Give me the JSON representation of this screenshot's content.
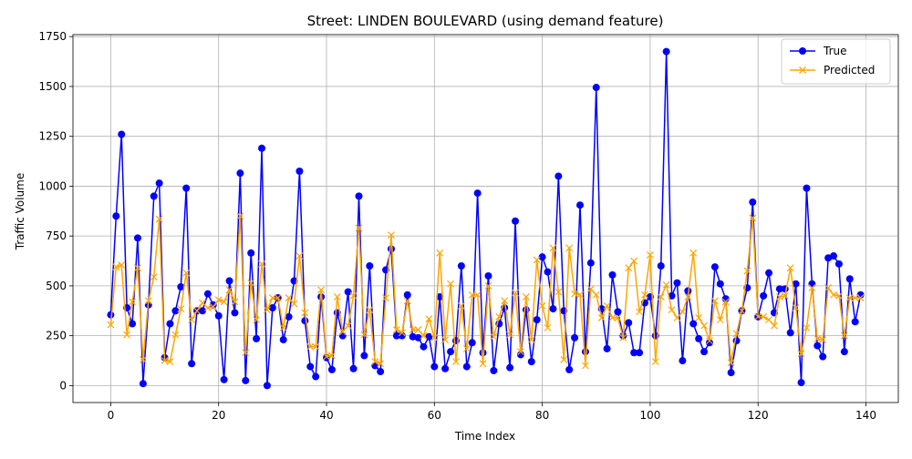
{
  "chart_data": {
    "type": "line",
    "title": "Street: LINDEN BOULEVARD (using demand feature)",
    "xlabel": "Time Index",
    "ylabel": "Traffic Volume",
    "xlim": [
      -7,
      146
    ],
    "ylim": [
      -85,
      1760
    ],
    "xticks": [
      0,
      20,
      40,
      60,
      80,
      100,
      120,
      140
    ],
    "yticks": [
      0,
      250,
      500,
      750,
      1000,
      1250,
      1500,
      1750
    ],
    "grid": true,
    "legend_position": "top-right",
    "series": [
      {
        "name": "True",
        "color": "#0000ff",
        "marker": "circle",
        "values": [
          355,
          850,
          1260,
          390,
          310,
          740,
          10,
          405,
          950,
          1015,
          140,
          310,
          375,
          495,
          990,
          110,
          375,
          375,
          460,
          405,
          350,
          30,
          525,
          365,
          1065,
          25,
          665,
          235,
          1190,
          0,
          390,
          440,
          230,
          345,
          525,
          1075,
          325,
          95,
          45,
          445,
          140,
          80,
          365,
          250,
          470,
          85,
          950,
          150,
          600,
          100,
          70,
          580,
          685,
          250,
          250,
          455,
          245,
          240,
          195,
          245,
          95,
          445,
          85,
          170,
          225,
          600,
          95,
          215,
          965,
          165,
          550,
          75,
          310,
          390,
          90,
          825,
          155,
          380,
          120,
          330,
          645,
          570,
          385,
          1050,
          375,
          80,
          240,
          905,
          170,
          615,
          1495,
          385,
          185,
          555,
          370,
          250,
          315,
          165,
          165,
          415,
          445,
          250,
          600,
          1675,
          450,
          515,
          125,
          475,
          310,
          235,
          170,
          215,
          595,
          510,
          435,
          65,
          225,
          375,
          490,
          920,
          345,
          450,
          565,
          365,
          485,
          485,
          265,
          510,
          15,
          990,
          510,
          200,
          145,
          640,
          650,
          610,
          170,
          535,
          320,
          455
        ]
      },
      {
        "name": "Predicted",
        "color": "#ffa500",
        "marker": "x",
        "values": [
          305,
          595,
          605,
          255,
          420,
          590,
          130,
          425,
          545,
          835,
          125,
          120,
          255,
          385,
          565,
          330,
          375,
          415,
          390,
          395,
          430,
          420,
          480,
          420,
          850,
          165,
          515,
          330,
          610,
          380,
          440,
          440,
          290,
          440,
          410,
          650,
          365,
          195,
          195,
          480,
          145,
          150,
          445,
          270,
          300,
          450,
          790,
          255,
          380,
          120,
          110,
          440,
          755,
          280,
          265,
          425,
          280,
          280,
          250,
          335,
          240,
          665,
          230,
          510,
          120,
          400,
          185,
          455,
          455,
          110,
          500,
          245,
          345,
          425,
          255,
          465,
          170,
          445,
          230,
          630,
          400,
          290,
          690,
          470,
          130,
          690,
          460,
          455,
          100,
          485,
          455,
          340,
          400,
          340,
          340,
          240,
          590,
          625,
          370,
          455,
          655,
          120,
          445,
          505,
          380,
          340,
          370,
          445,
          665,
          340,
          300,
          225,
          425,
          330,
          420,
          115,
          260,
          375,
          575,
          840,
          345,
          345,
          330,
          300,
          445,
          450,
          590,
          390,
          160,
          290,
          490,
          235,
          230,
          490,
          455,
          450,
          250,
          440,
          440,
          440
        ]
      }
    ]
  }
}
